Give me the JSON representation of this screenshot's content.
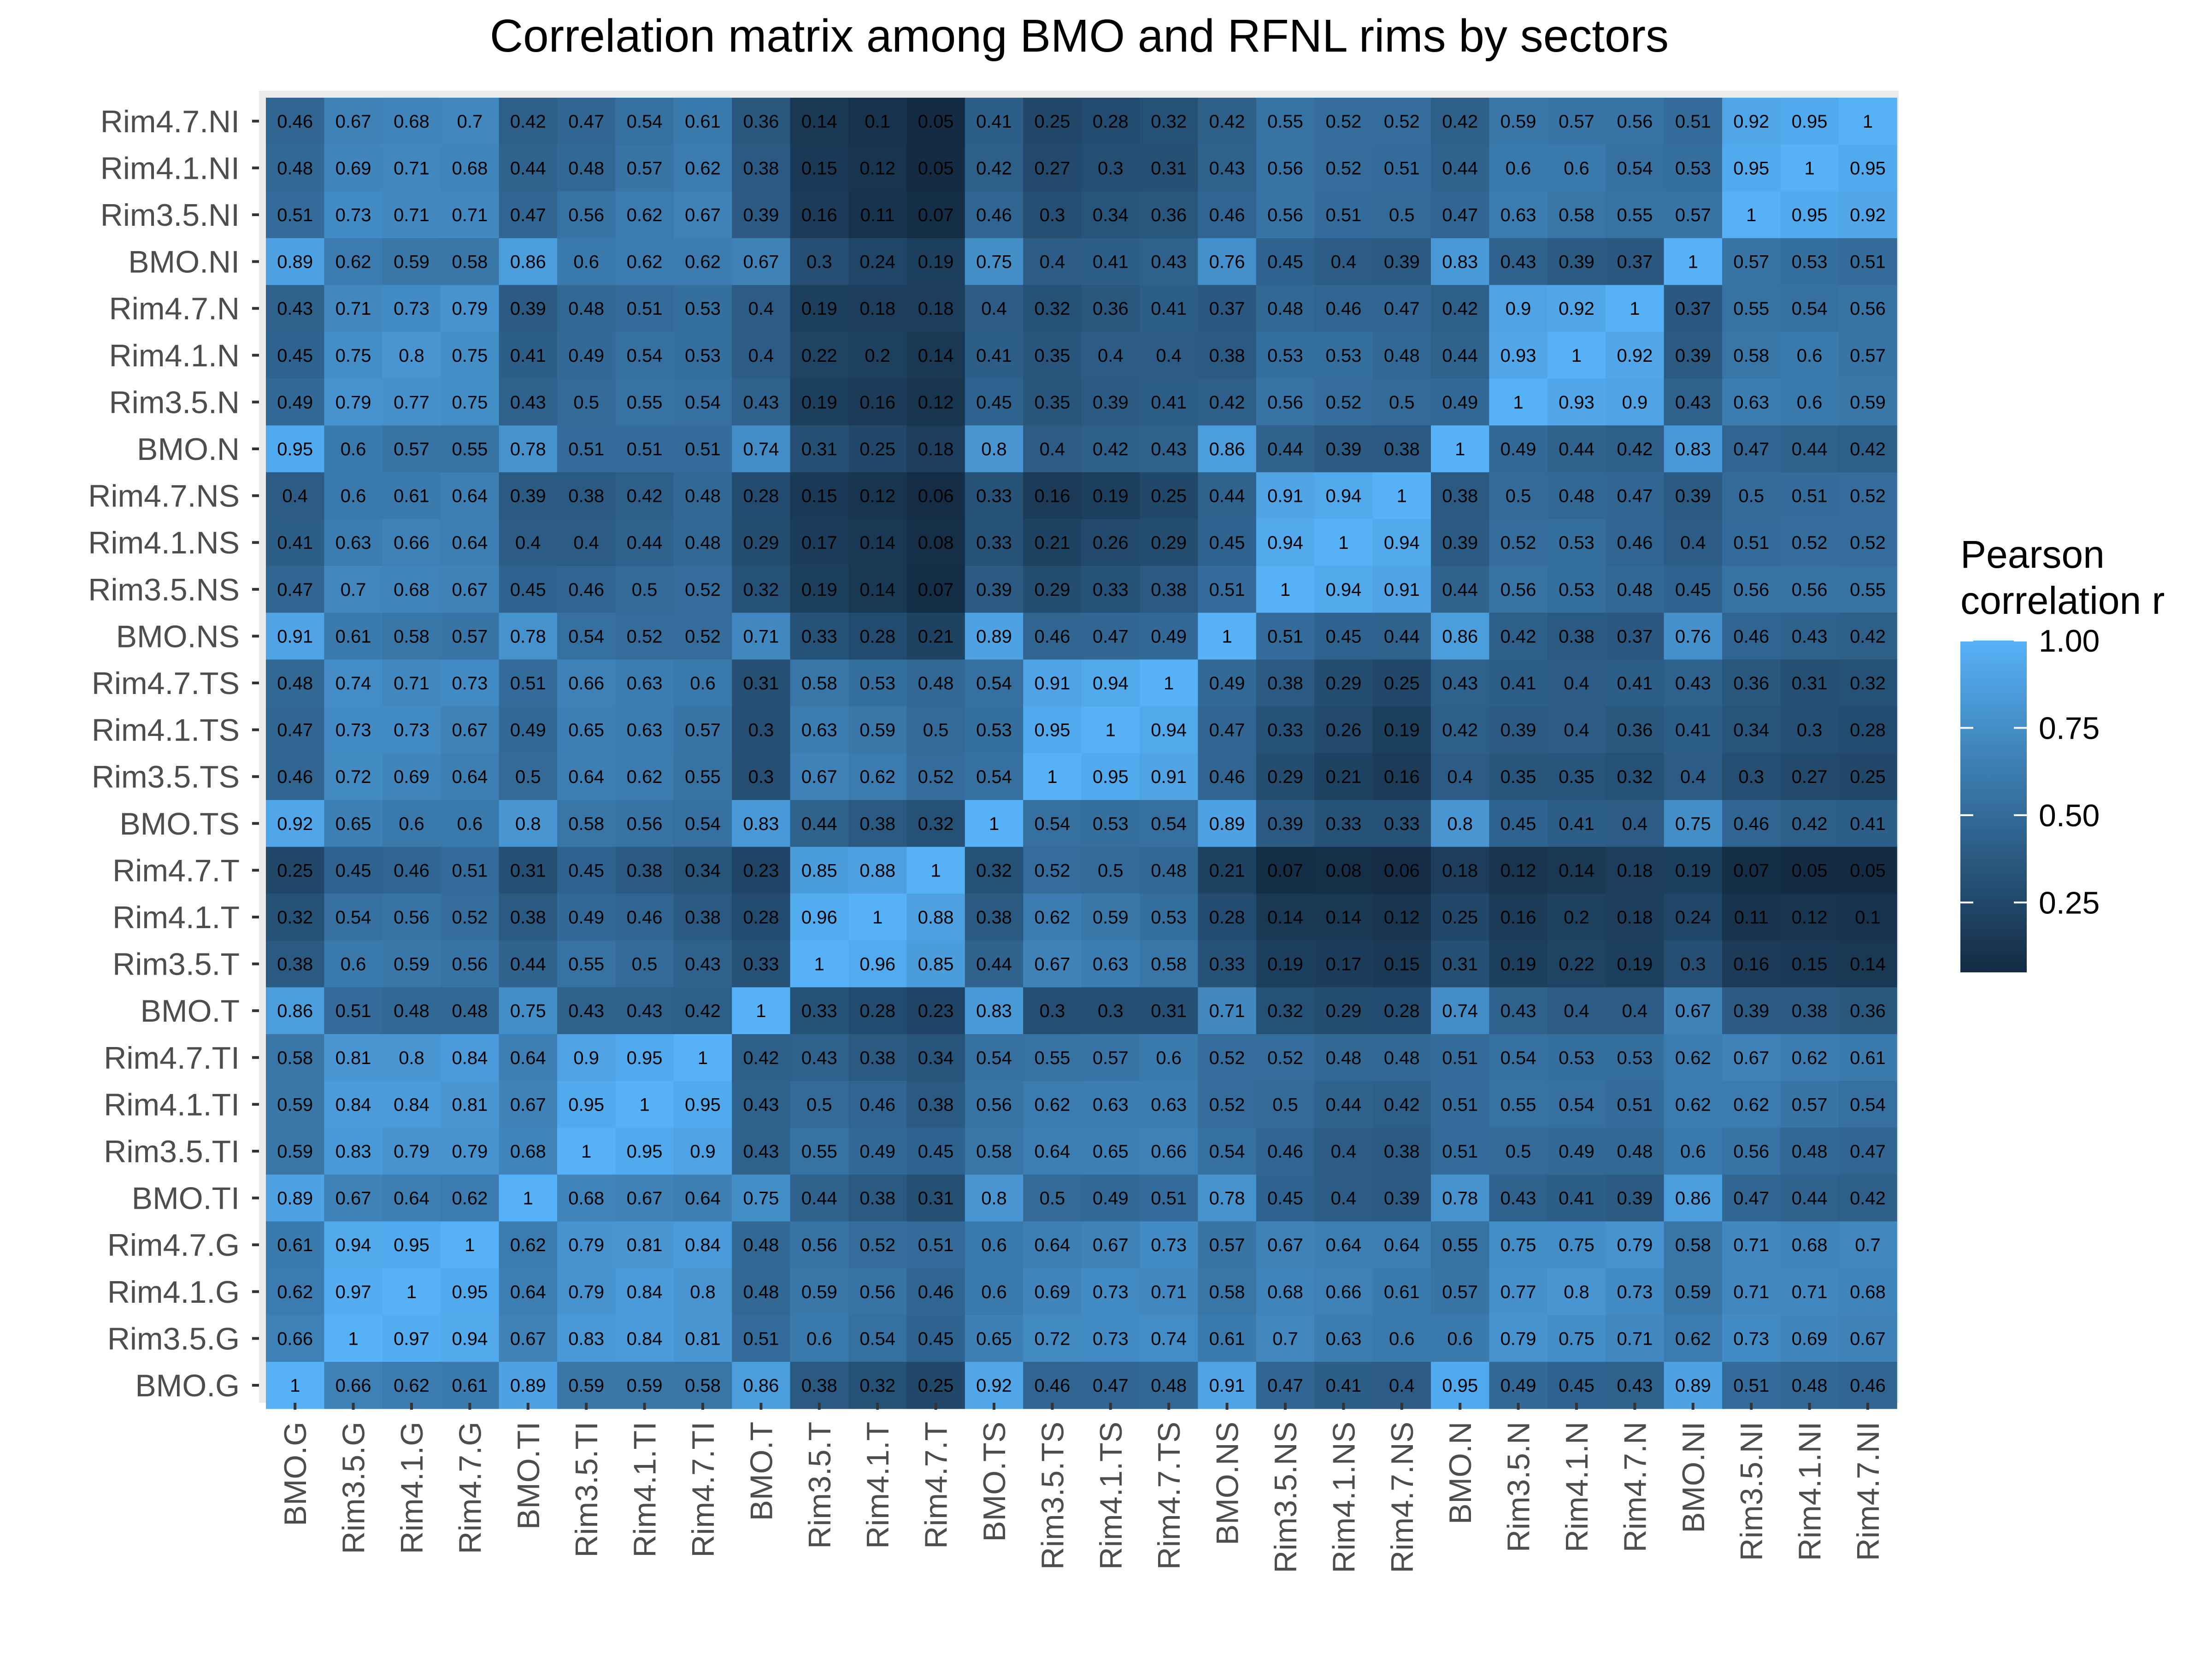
{
  "chart_data": {
    "type": "heatmap",
    "title": "Correlation matrix among BMO and RFNL rims by sectors",
    "x_categories": [
      "BMO.G",
      "Rim3.5.G",
      "Rim4.1.G",
      "Rim4.7.G",
      "BMO.TI",
      "Rim3.5.TI",
      "Rim4.1.TI",
      "Rim4.7.TI",
      "BMO.T",
      "Rim3.5.T",
      "Rim4.1.T",
      "Rim4.7.T",
      "BMO.TS",
      "Rim3.5.TS",
      "Rim4.1.TS",
      "Rim4.7.TS",
      "BMO.NS",
      "Rim3.5.NS",
      "Rim4.1.NS",
      "Rim4.7.NS",
      "BMO.N",
      "Rim3.5.N",
      "Rim4.1.N",
      "Rim4.7.N",
      "BMO.NI",
      "Rim3.5.NI",
      "Rim4.1.NI",
      "Rim4.7.NI"
    ],
    "y_categories_top_to_bottom": [
      "Rim4.7.NI",
      "Rim4.1.NI",
      "Rim3.5.NI",
      "BMO.NI",
      "Rim4.7.N",
      "Rim4.1.N",
      "Rim3.5.N",
      "BMO.N",
      "Rim4.7.NS",
      "Rim4.1.NS",
      "Rim3.5.NS",
      "BMO.NS",
      "Rim4.7.TS",
      "Rim4.1.TS",
      "Rim3.5.TS",
      "BMO.TS",
      "Rim4.7.T",
      "Rim4.1.T",
      "Rim3.5.T",
      "BMO.T",
      "Rim4.7.TI",
      "Rim4.1.TI",
      "Rim3.5.TI",
      "BMO.TI",
      "Rim4.7.G",
      "Rim4.1.G",
      "Rim3.5.G",
      "BMO.G"
    ],
    "values": [
      [
        0.46,
        0.67,
        0.68,
        0.7,
        0.42,
        0.47,
        0.54,
        0.61,
        0.36,
        0.14,
        0.1,
        0.05,
        0.41,
        0.25,
        0.28,
        0.32,
        0.42,
        0.55,
        0.52,
        0.52,
        0.42,
        0.59,
        0.57,
        0.56,
        0.51,
        0.92,
        0.95,
        1
      ],
      [
        0.48,
        0.69,
        0.71,
        0.68,
        0.44,
        0.48,
        0.57,
        0.62,
        0.38,
        0.15,
        0.12,
        0.05,
        0.42,
        0.27,
        0.3,
        0.31,
        0.43,
        0.56,
        0.52,
        0.51,
        0.44,
        0.6,
        0.6,
        0.54,
        0.53,
        0.95,
        1,
        0.95
      ],
      [
        0.51,
        0.73,
        0.71,
        0.71,
        0.47,
        0.56,
        0.62,
        0.67,
        0.39,
        0.16,
        0.11,
        0.07,
        0.46,
        0.3,
        0.34,
        0.36,
        0.46,
        0.56,
        0.51,
        0.5,
        0.47,
        0.63,
        0.58,
        0.55,
        0.57,
        1,
        0.95,
        0.92
      ],
      [
        0.89,
        0.62,
        0.59,
        0.58,
        0.86,
        0.6,
        0.62,
        0.62,
        0.67,
        0.3,
        0.24,
        0.19,
        0.75,
        0.4,
        0.41,
        0.43,
        0.76,
        0.45,
        0.4,
        0.39,
        0.83,
        0.43,
        0.39,
        0.37,
        1,
        0.57,
        0.53,
        0.51
      ],
      [
        0.43,
        0.71,
        0.73,
        0.79,
        0.39,
        0.48,
        0.51,
        0.53,
        0.4,
        0.19,
        0.18,
        0.18,
        0.4,
        0.32,
        0.36,
        0.41,
        0.37,
        0.48,
        0.46,
        0.47,
        0.42,
        0.9,
        0.92,
        1,
        0.37,
        0.55,
        0.54,
        0.56
      ],
      [
        0.45,
        0.75,
        0.8,
        0.75,
        0.41,
        0.49,
        0.54,
        0.53,
        0.4,
        0.22,
        0.2,
        0.14,
        0.41,
        0.35,
        0.4,
        0.4,
        0.38,
        0.53,
        0.53,
        0.48,
        0.44,
        0.93,
        1,
        0.92,
        0.39,
        0.58,
        0.6,
        0.57
      ],
      [
        0.49,
        0.79,
        0.77,
        0.75,
        0.43,
        0.5,
        0.55,
        0.54,
        0.43,
        0.19,
        0.16,
        0.12,
        0.45,
        0.35,
        0.39,
        0.41,
        0.42,
        0.56,
        0.52,
        0.5,
        0.49,
        1,
        0.93,
        0.9,
        0.43,
        0.63,
        0.6,
        0.59
      ],
      [
        0.95,
        0.6,
        0.57,
        0.55,
        0.78,
        0.51,
        0.51,
        0.51,
        0.74,
        0.31,
        0.25,
        0.18,
        0.8,
        0.4,
        0.42,
        0.43,
        0.86,
        0.44,
        0.39,
        0.38,
        1,
        0.49,
        0.44,
        0.42,
        0.83,
        0.47,
        0.44,
        0.42
      ],
      [
        0.4,
        0.6,
        0.61,
        0.64,
        0.39,
        0.38,
        0.42,
        0.48,
        0.28,
        0.15,
        0.12,
        0.06,
        0.33,
        0.16,
        0.19,
        0.25,
        0.44,
        0.91,
        0.94,
        1,
        0.38,
        0.5,
        0.48,
        0.47,
        0.39,
        0.5,
        0.51,
        0.52
      ],
      [
        0.41,
        0.63,
        0.66,
        0.64,
        0.4,
        0.4,
        0.44,
        0.48,
        0.29,
        0.17,
        0.14,
        0.08,
        0.33,
        0.21,
        0.26,
        0.29,
        0.45,
        0.94,
        1,
        0.94,
        0.39,
        0.52,
        0.53,
        0.46,
        0.4,
        0.51,
        0.52,
        0.52
      ],
      [
        0.47,
        0.7,
        0.68,
        0.67,
        0.45,
        0.46,
        0.5,
        0.52,
        0.32,
        0.19,
        0.14,
        0.07,
        0.39,
        0.29,
        0.33,
        0.38,
        0.51,
        1,
        0.94,
        0.91,
        0.44,
        0.56,
        0.53,
        0.48,
        0.45,
        0.56,
        0.56,
        0.55
      ],
      [
        0.91,
        0.61,
        0.58,
        0.57,
        0.78,
        0.54,
        0.52,
        0.52,
        0.71,
        0.33,
        0.28,
        0.21,
        0.89,
        0.46,
        0.47,
        0.49,
        1,
        0.51,
        0.45,
        0.44,
        0.86,
        0.42,
        0.38,
        0.37,
        0.76,
        0.46,
        0.43,
        0.42
      ],
      [
        0.48,
        0.74,
        0.71,
        0.73,
        0.51,
        0.66,
        0.63,
        0.6,
        0.31,
        0.58,
        0.53,
        0.48,
        0.54,
        0.91,
        0.94,
        1,
        0.49,
        0.38,
        0.29,
        0.25,
        0.43,
        0.41,
        0.4,
        0.41,
        0.43,
        0.36,
        0.31,
        0.32
      ],
      [
        0.47,
        0.73,
        0.73,
        0.67,
        0.49,
        0.65,
        0.63,
        0.57,
        0.3,
        0.63,
        0.59,
        0.5,
        0.53,
        0.95,
        1,
        0.94,
        0.47,
        0.33,
        0.26,
        0.19,
        0.42,
        0.39,
        0.4,
        0.36,
        0.41,
        0.34,
        0.3,
        0.28
      ],
      [
        0.46,
        0.72,
        0.69,
        0.64,
        0.5,
        0.64,
        0.62,
        0.55,
        0.3,
        0.67,
        0.62,
        0.52,
        0.54,
        1,
        0.95,
        0.91,
        0.46,
        0.29,
        0.21,
        0.16,
        0.4,
        0.35,
        0.35,
        0.32,
        0.4,
        0.3,
        0.27,
        0.25
      ],
      [
        0.92,
        0.65,
        0.6,
        0.6,
        0.8,
        0.58,
        0.56,
        0.54,
        0.83,
        0.44,
        0.38,
        0.32,
        1,
        0.54,
        0.53,
        0.54,
        0.89,
        0.39,
        0.33,
        0.33,
        0.8,
        0.45,
        0.41,
        0.4,
        0.75,
        0.46,
        0.42,
        0.41
      ],
      [
        0.25,
        0.45,
        0.46,
        0.51,
        0.31,
        0.45,
        0.38,
        0.34,
        0.23,
        0.85,
        0.88,
        1,
        0.32,
        0.52,
        0.5,
        0.48,
        0.21,
        0.07,
        0.08,
        0.06,
        0.18,
        0.12,
        0.14,
        0.18,
        0.19,
        0.07,
        0.05,
        0.05
      ],
      [
        0.32,
        0.54,
        0.56,
        0.52,
        0.38,
        0.49,
        0.46,
        0.38,
        0.28,
        0.96,
        1,
        0.88,
        0.38,
        0.62,
        0.59,
        0.53,
        0.28,
        0.14,
        0.14,
        0.12,
        0.25,
        0.16,
        0.2,
        0.18,
        0.24,
        0.11,
        0.12,
        0.1
      ],
      [
        0.38,
        0.6,
        0.59,
        0.56,
        0.44,
        0.55,
        0.5,
        0.43,
        0.33,
        1,
        0.96,
        0.85,
        0.44,
        0.67,
        0.63,
        0.58,
        0.33,
        0.19,
        0.17,
        0.15,
        0.31,
        0.19,
        0.22,
        0.19,
        0.3,
        0.16,
        0.15,
        0.14
      ],
      [
        0.86,
        0.51,
        0.48,
        0.48,
        0.75,
        0.43,
        0.43,
        0.42,
        1,
        0.33,
        0.28,
        0.23,
        0.83,
        0.3,
        0.3,
        0.31,
        0.71,
        0.32,
        0.29,
        0.28,
        0.74,
        0.43,
        0.4,
        0.4,
        0.67,
        0.39,
        0.38,
        0.36
      ],
      [
        0.58,
        0.81,
        0.8,
        0.84,
        0.64,
        0.9,
        0.95,
        1,
        0.42,
        0.43,
        0.38,
        0.34,
        0.54,
        0.55,
        0.57,
        0.6,
        0.52,
        0.52,
        0.48,
        0.48,
        0.51,
        0.54,
        0.53,
        0.53,
        0.62,
        0.67,
        0.62,
        0.61
      ],
      [
        0.59,
        0.84,
        0.84,
        0.81,
        0.67,
        0.95,
        1,
        0.95,
        0.43,
        0.5,
        0.46,
        0.38,
        0.56,
        0.62,
        0.63,
        0.63,
        0.52,
        0.5,
        0.44,
        0.42,
        0.51,
        0.55,
        0.54,
        0.51,
        0.62,
        0.62,
        0.57,
        0.54
      ],
      [
        0.59,
        0.83,
        0.79,
        0.79,
        0.68,
        1,
        0.95,
        0.9,
        0.43,
        0.55,
        0.49,
        0.45,
        0.58,
        0.64,
        0.65,
        0.66,
        0.54,
        0.46,
        0.4,
        0.38,
        0.51,
        0.5,
        0.49,
        0.48,
        0.6,
        0.56,
        0.48,
        0.47
      ],
      [
        0.89,
        0.67,
        0.64,
        0.62,
        1,
        0.68,
        0.67,
        0.64,
        0.75,
        0.44,
        0.38,
        0.31,
        0.8,
        0.5,
        0.49,
        0.51,
        0.78,
        0.45,
        0.4,
        0.39,
        0.78,
        0.43,
        0.41,
        0.39,
        0.86,
        0.47,
        0.44,
        0.42
      ],
      [
        0.61,
        0.94,
        0.95,
        1,
        0.62,
        0.79,
        0.81,
        0.84,
        0.48,
        0.56,
        0.52,
        0.51,
        0.6,
        0.64,
        0.67,
        0.73,
        0.57,
        0.67,
        0.64,
        0.64,
        0.55,
        0.75,
        0.75,
        0.79,
        0.58,
        0.71,
        0.68,
        0.7
      ],
      [
        0.62,
        0.97,
        1,
        0.95,
        0.64,
        0.79,
        0.84,
        0.8,
        0.48,
        0.59,
        0.56,
        0.46,
        0.6,
        0.69,
        0.73,
        0.71,
        0.58,
        0.68,
        0.66,
        0.61,
        0.57,
        0.77,
        0.8,
        0.73,
        0.59,
        0.71,
        0.71,
        0.68
      ],
      [
        0.66,
        1,
        0.97,
        0.94,
        0.67,
        0.83,
        0.84,
        0.81,
        0.51,
        0.6,
        0.54,
        0.45,
        0.65,
        0.72,
        0.73,
        0.74,
        0.61,
        0.7,
        0.63,
        0.6,
        0.6,
        0.79,
        0.75,
        0.71,
        0.62,
        0.73,
        0.69,
        0.67
      ],
      [
        1,
        0.66,
        0.62,
        0.61,
        0.89,
        0.59,
        0.59,
        0.58,
        0.86,
        0.38,
        0.32,
        0.25,
        0.92,
        0.46,
        0.47,
        0.48,
        0.91,
        0.47,
        0.41,
        0.4,
        0.95,
        0.49,
        0.45,
        0.43,
        0.89,
        0.51,
        0.48,
        0.46
      ]
    ],
    "legend": {
      "title_lines": [
        "Pearson",
        "correlation r"
      ],
      "ticks": [
        1.0,
        0.75,
        0.5,
        0.25
      ],
      "tick_labels": [
        "1.00",
        "0.75",
        "0.50",
        "0.25"
      ],
      "range": [
        0.05,
        1.0
      ],
      "placement": "right"
    },
    "colors": {
      "low": "#132B43",
      "high": "#56B1F7",
      "panel_bg": "#EBEBEB"
    },
    "grid": false
  }
}
